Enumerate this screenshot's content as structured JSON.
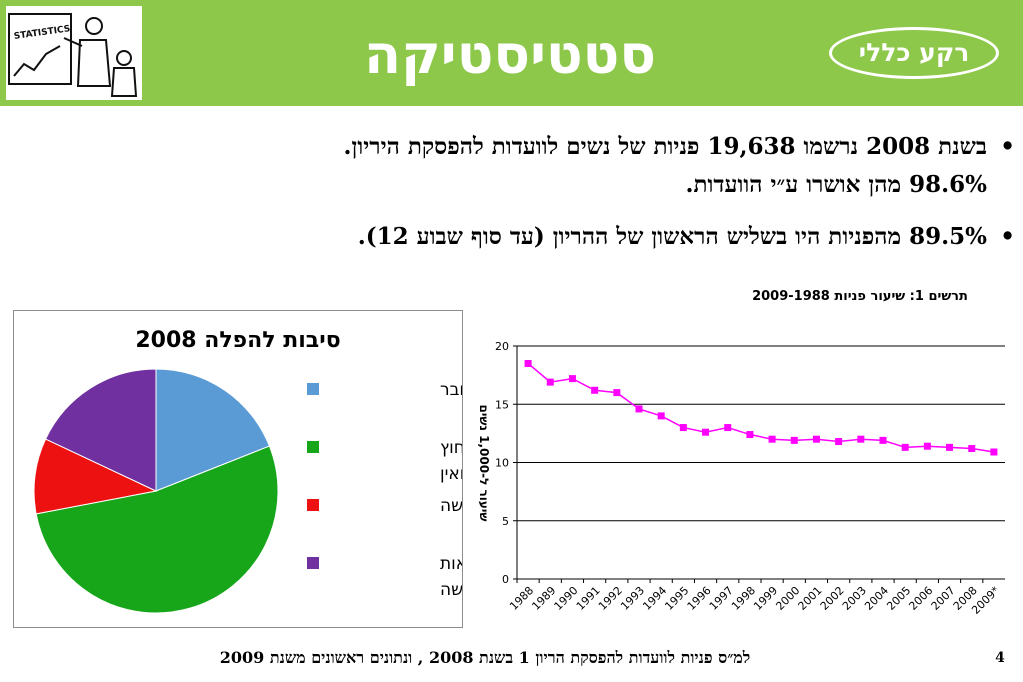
{
  "header": {
    "title": "סטטיסטיקה",
    "badge": "רקע כללי",
    "logo_text": "STATISTICS",
    "colors": {
      "bar": "#8dc84a",
      "text": "#ffffff"
    }
  },
  "bullets": [
    {
      "line1": "בשנת 2008 נרשמו 19,638 פניות של נשים לוועדות להפסקת היריון.",
      "line2": "98.6% מהן אושרו ע״י הוועדות."
    },
    {
      "line1": "89.5% מהפניות היו בשליש הראשון של ההריון (עד סוף שבוע 12).",
      "line2": ""
    }
  ],
  "footer": {
    "source": "למ״ס פניות לוועדות להפסקת הריון 1 בשנת 2008 , ונתונים ראשונים משנת 2009",
    "page_number": "4"
  },
  "chart_data": [
    {
      "type": "pie",
      "title": "סיבות להפלה 2008",
      "legend_position": "right",
      "slices": [
        {
          "label": "מום בעובר",
          "value": 19,
          "color": "#5b9bd5"
        },
        {
          "label": "הריון מחוץ לנישואין",
          "value": 53,
          "color": "#17a51a"
        },
        {
          "label": "גיל האשה",
          "value": 10,
          "color": "#ee1111"
        },
        {
          "label": "סיכון לבריאות האשה",
          "value": 18,
          "color": "#7030a0"
        }
      ]
    },
    {
      "type": "line",
      "title": "תרשים 1: שיעור פניות 2009-1988",
      "ylabel": "שיעור ל-1,000 נשים",
      "xlabel": "",
      "ylim": [
        0,
        20
      ],
      "yticks": [
        0,
        5,
        10,
        15,
        20
      ],
      "grid": true,
      "line_color": "#ff00ff",
      "categories": [
        "1988",
        "1989",
        "1990",
        "1991",
        "1992",
        "1993",
        "1994",
        "1995",
        "1996",
        "1997",
        "1998",
        "1999",
        "2000",
        "2001",
        "2002",
        "2003",
        "2004",
        "2005",
        "2006",
        "2007",
        "2008",
        "2009*"
      ],
      "series": [
        {
          "values": [
            18.5,
            16.9,
            17.2,
            16.2,
            16.0,
            14.6,
            14.0,
            13.0,
            12.6,
            13.0,
            12.4,
            12.0,
            11.9,
            12.0,
            11.8,
            12.0,
            11.9,
            11.3,
            11.4,
            11.3,
            11.2,
            10.9
          ]
        }
      ]
    }
  ]
}
